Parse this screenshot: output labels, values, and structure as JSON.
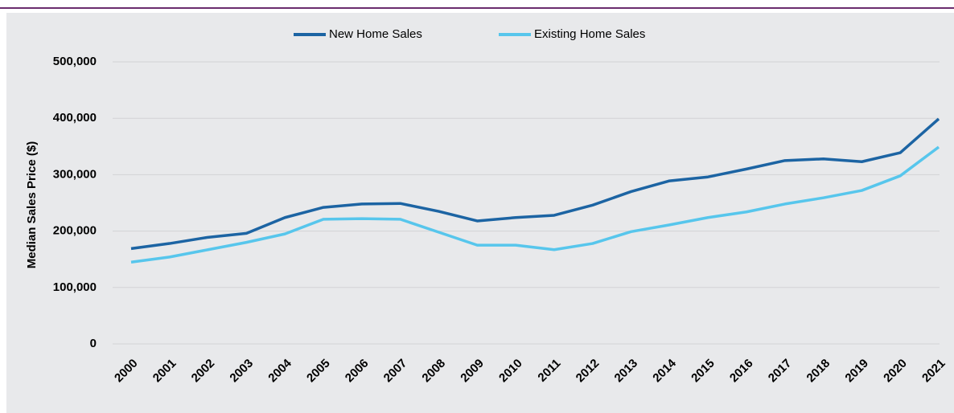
{
  "chart_data": {
    "type": "line",
    "ylabel": "Median Sales Price ($)",
    "categories": [
      "2000",
      "2001",
      "2002",
      "2003",
      "2004",
      "2005",
      "2006",
      "2007",
      "2008",
      "2009",
      "2010",
      "2011",
      "2012",
      "2013",
      "2014",
      "2015",
      "2016",
      "2017",
      "2018",
      "2019",
      "2020",
      "2021"
    ],
    "series": [
      {
        "name": "New Home Sales",
        "color": "#1c64a3",
        "values": [
          169000,
          178000,
          189000,
          196000,
          224000,
          242000,
          248000,
          249000,
          235000,
          218000,
          224000,
          228000,
          246000,
          270000,
          289000,
          296000,
          310000,
          325000,
          328000,
          323000,
          339000,
          399000
        ]
      },
      {
        "name": "Existing Home Sales",
        "color": "#57c6ec",
        "values": [
          145000,
          154000,
          167000,
          180000,
          195000,
          221000,
          222000,
          221000,
          198000,
          175000,
          175000,
          167000,
          178000,
          199000,
          211000,
          224000,
          234000,
          248000,
          259000,
          272000,
          298000,
          349000
        ]
      }
    ],
    "ylim": [
      0,
      500000
    ],
    "yticks": [
      0,
      {
        "value": 100000,
        "label": "100,000"
      },
      {
        "value": 200000,
        "label": "200,000"
      },
      {
        "value": 300000,
        "label": "300,000"
      },
      {
        "value": 400000,
        "label": "400,000"
      },
      {
        "value": 500000,
        "label": "500,000"
      }
    ],
    "grid": true,
    "legend": "top"
  }
}
